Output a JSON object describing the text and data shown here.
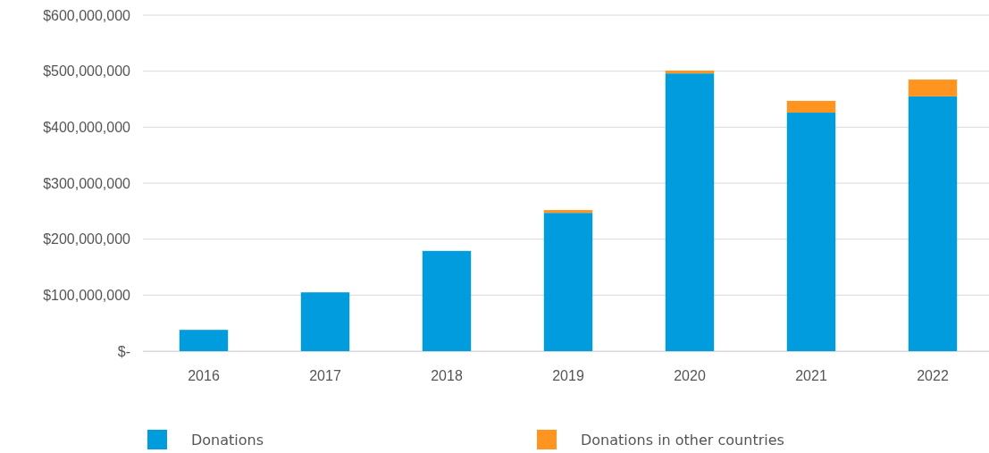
{
  "chart_data": {
    "type": "bar",
    "stacked": true,
    "categories": [
      "2016",
      "2017",
      "2018",
      "2019",
      "2020",
      "2021",
      "2022"
    ],
    "series": [
      {
        "name": "Donations",
        "color": "#009cde",
        "values": [
          38000000,
          105000000,
          179000000,
          247000000,
          496000000,
          426000000,
          455000000
        ]
      },
      {
        "name": "Donations in other countries",
        "color": "#ff9421",
        "values": [
          0,
          0,
          0,
          5000000,
          5000000,
          21000000,
          30000000
        ]
      }
    ],
    "ylim": [
      0,
      600000000
    ],
    "yticks": [
      {
        "value": 0,
        "label": "$-"
      },
      {
        "value": 100000000,
        "label": "$100,000,000"
      },
      {
        "value": 200000000,
        "label": "$200,000,000"
      },
      {
        "value": 300000000,
        "label": "$300,000,000"
      },
      {
        "value": 400000000,
        "label": "$400,000,000"
      },
      {
        "value": 500000000,
        "label": "$500,000,000"
      },
      {
        "value": 600000000,
        "label": "$600,000,000"
      }
    ],
    "grid": "y",
    "legend": "bottom"
  }
}
